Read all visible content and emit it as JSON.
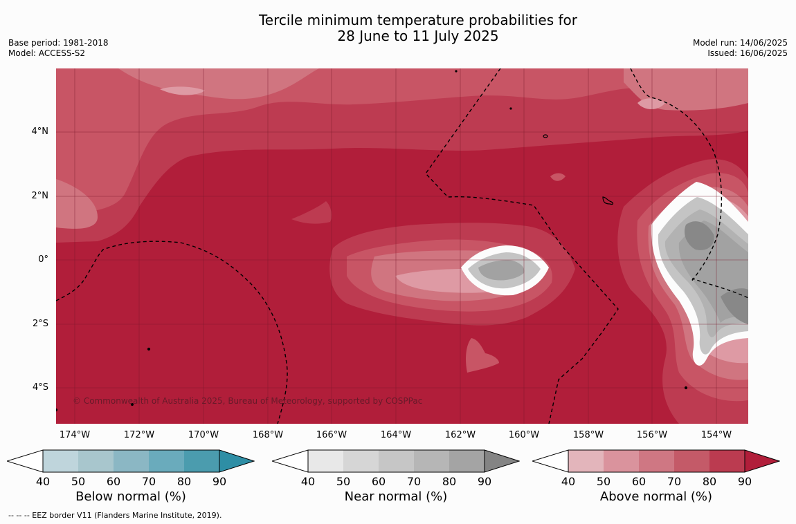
{
  "title_line1": "Tercile minimum temperature probabilities for",
  "title_line2": "28 June to 11 July 2025",
  "base_period": "Base period: 1981-2018",
  "model": "Model: ACCESS-S2",
  "model_run": "Model run: 14/06/2025",
  "issued": "Issued: 16/06/2025",
  "copyright": "© Commonwealth of Australia 2025, Bureau of Meteorology, supported by COSPPac",
  "map": {
    "lat_labels": [
      "4°N",
      "2°N",
      "0°",
      "2°S",
      "4°S"
    ],
    "lon_labels": [
      "174°W",
      "172°W",
      "170°W",
      "168°W",
      "166°W",
      "164°W",
      "162°W",
      "160°W",
      "158°W",
      "156°W",
      "154°W"
    ],
    "colors": {
      "above_90": "#b11e3a",
      "above_80": "#bd3b51",
      "above_70": "#c85565",
      "above_60": "#d07580",
      "above_50": "#de9aa4",
      "above_40": "#e9c3c8",
      "near_50": "#d7d7d7",
      "near_60": "#c4c4c4",
      "near_70": "#b2b2b2",
      "near_80": "#a2a2a2",
      "near_90": "#888888"
    }
  },
  "colorbars": {
    "below": {
      "caption": "Below normal (%)",
      "ticks": [
        "40",
        "50",
        "60",
        "70",
        "80",
        "90"
      ],
      "colors": [
        "#bfd5dc",
        "#a8c6cd",
        "#8bb7c4",
        "#6aabbc",
        "#4b9cae",
        "#2e8ea5"
      ]
    },
    "near": {
      "caption": "Near normal (%)",
      "ticks": [
        "40",
        "50",
        "60",
        "70",
        "80",
        "90"
      ],
      "colors": [
        "#e8e8e8",
        "#d6d6d6",
        "#c6c6c6",
        "#b6b6b6",
        "#a4a4a4",
        "#848484"
      ]
    },
    "above": {
      "caption": "Above normal (%)",
      "ticks": [
        "40",
        "50",
        "60",
        "70",
        "80",
        "90"
      ],
      "colors": [
        "#e3b5bb",
        "#da939d",
        "#cf7783",
        "#c45a68",
        "#bb3b50",
        "#b11e3a"
      ]
    }
  },
  "footnote": "--  --  -- EEZ border V11 (Flanders Marine Institute, 2019)."
}
